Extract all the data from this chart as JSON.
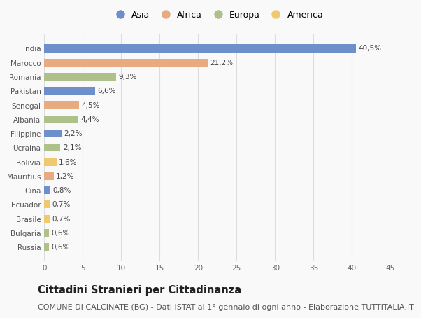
{
  "countries": [
    "India",
    "Marocco",
    "Romania",
    "Pakistan",
    "Senegal",
    "Albania",
    "Filippine",
    "Ucraina",
    "Bolivia",
    "Mauritius",
    "Cina",
    "Ecuador",
    "Brasile",
    "Bulgaria",
    "Russia"
  ],
  "values": [
    40.5,
    21.2,
    9.3,
    6.6,
    4.5,
    4.4,
    2.2,
    2.1,
    1.6,
    1.2,
    0.8,
    0.7,
    0.7,
    0.6,
    0.6
  ],
  "labels": [
    "40,5%",
    "21,2%",
    "9,3%",
    "6,6%",
    "4,5%",
    "4,4%",
    "2,2%",
    "2,1%",
    "1,6%",
    "1,2%",
    "0,8%",
    "0,7%",
    "0,7%",
    "0,6%",
    "0,6%"
  ],
  "continents": [
    "Asia",
    "Africa",
    "Europa",
    "Asia",
    "Africa",
    "Europa",
    "Asia",
    "Europa",
    "America",
    "Africa",
    "Asia",
    "America",
    "America",
    "Europa",
    "Europa"
  ],
  "continent_colors": {
    "Asia": "#6e8fc9",
    "Africa": "#e8aa80",
    "Europa": "#afc18a",
    "America": "#f0c96e"
  },
  "legend_order": [
    "Asia",
    "Africa",
    "Europa",
    "America"
  ],
  "title": "Cittadini Stranieri per Cittadinanza",
  "subtitle": "COMUNE DI CALCINATE (BG) - Dati ISTAT al 1° gennaio di ogni anno - Elaborazione TUTTITALIA.IT",
  "xlim": [
    0,
    45
  ],
  "xticks": [
    0,
    5,
    10,
    15,
    20,
    25,
    30,
    35,
    40,
    45
  ],
  "background_color": "#f9f9f9",
  "grid_color": "#dddddd",
  "bar_height": 0.55,
  "title_fontsize": 10.5,
  "subtitle_fontsize": 8,
  "label_fontsize": 7.5,
  "tick_fontsize": 7.5,
  "legend_fontsize": 9
}
